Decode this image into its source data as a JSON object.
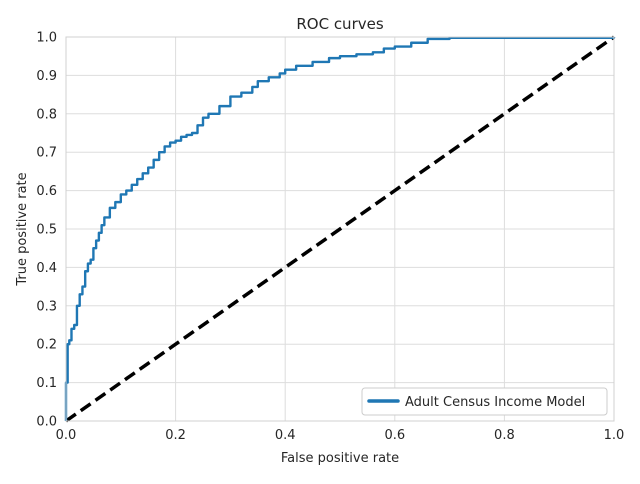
{
  "chart_data": {
    "type": "line",
    "title": "ROC curves",
    "xlabel": "False positive rate",
    "ylabel": "True positive rate",
    "xlim": [
      0,
      1
    ],
    "ylim": [
      0,
      1
    ],
    "xticks": [
      "0.0",
      "0.2",
      "0.4",
      "0.6",
      "0.8",
      "1.0"
    ],
    "yticks": [
      "0.0",
      "0.1",
      "0.2",
      "0.3",
      "0.4",
      "0.5",
      "0.6",
      "0.7",
      "0.8",
      "0.9",
      "1.0"
    ],
    "grid": true,
    "legend_position": "lower-right",
    "series": [
      {
        "name": "Adult Census Income Model",
        "color": "#1f77b4",
        "x": [
          0.0,
          0.0,
          0.003,
          0.006,
          0.01,
          0.015,
          0.02,
          0.025,
          0.03,
          0.035,
          0.04,
          0.045,
          0.05,
          0.055,
          0.06,
          0.065,
          0.07,
          0.08,
          0.09,
          0.1,
          0.11,
          0.12,
          0.13,
          0.14,
          0.15,
          0.16,
          0.17,
          0.18,
          0.19,
          0.2,
          0.21,
          0.22,
          0.23,
          0.24,
          0.25,
          0.26,
          0.28,
          0.3,
          0.32,
          0.34,
          0.35,
          0.37,
          0.39,
          0.4,
          0.42,
          0.45,
          0.48,
          0.5,
          0.53,
          0.56,
          0.58,
          0.6,
          0.63,
          0.66,
          0.7,
          0.8,
          0.9,
          1.0
        ],
        "y": [
          0.0,
          0.1,
          0.2,
          0.21,
          0.24,
          0.25,
          0.3,
          0.33,
          0.35,
          0.39,
          0.41,
          0.42,
          0.45,
          0.47,
          0.49,
          0.51,
          0.53,
          0.555,
          0.57,
          0.59,
          0.6,
          0.615,
          0.63,
          0.645,
          0.66,
          0.68,
          0.7,
          0.715,
          0.725,
          0.73,
          0.74,
          0.745,
          0.75,
          0.77,
          0.79,
          0.8,
          0.82,
          0.845,
          0.855,
          0.87,
          0.885,
          0.895,
          0.905,
          0.915,
          0.925,
          0.935,
          0.945,
          0.95,
          0.955,
          0.96,
          0.97,
          0.975,
          0.985,
          0.995,
          0.998,
          0.998,
          0.998,
          1.0
        ]
      },
      {
        "name": "",
        "color": "#000000",
        "style": "dashed",
        "x": [
          0,
          1
        ],
        "y": [
          0,
          1
        ]
      }
    ]
  }
}
